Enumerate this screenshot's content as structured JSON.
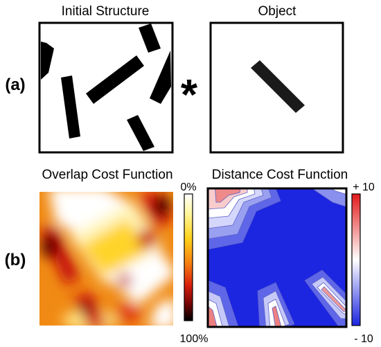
{
  "panel_a": {
    "label": "(a)",
    "left_title": "Initial Structure",
    "operator": "*",
    "right_title": "Object"
  },
  "panel_b": {
    "label": "(b)",
    "left_title": "Overlap Cost Function",
    "left_scale_top": "0%",
    "left_scale_bottom": "100%",
    "right_title": "Distance Cost Function",
    "right_scale_top": "+ 10",
    "right_scale_bottom": "- 10"
  },
  "colors": {
    "overlap_high": "#000000",
    "overlap_mid": "#e84a10",
    "overlap_low": "#ffffff",
    "distance_negative": "#1c25e0",
    "distance_zero": "#ffffff",
    "distance_positive": "#e21a1a"
  }
}
